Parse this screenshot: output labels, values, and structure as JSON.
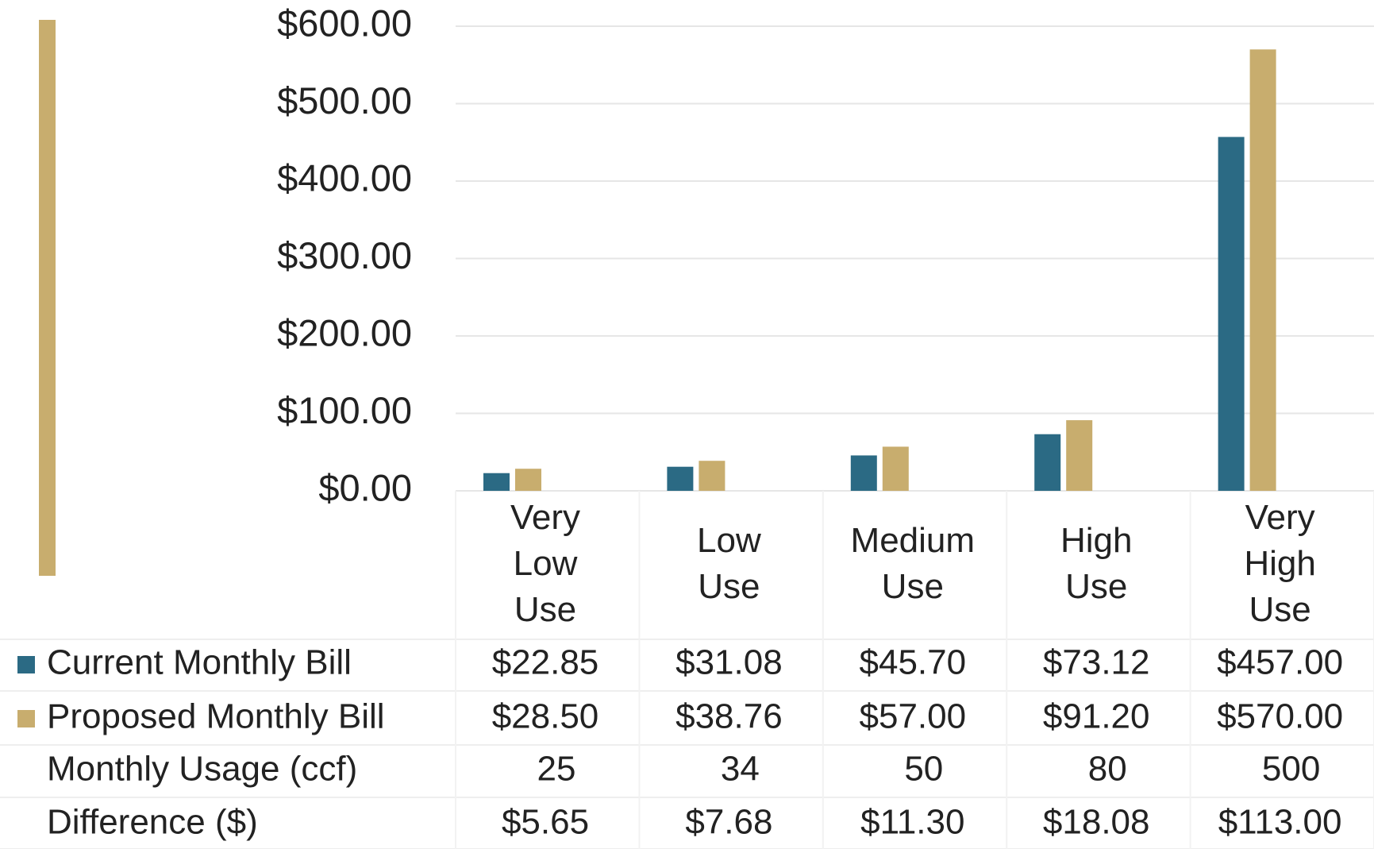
{
  "chart_data": {
    "type": "bar",
    "categories": [
      "Very Low Use",
      "Low Use",
      "Medium Use",
      "High Use",
      "Very High Use"
    ],
    "series": [
      {
        "name": "Current Monthly Bill",
        "color": "#2b6a84",
        "values": [
          22.85,
          31.08,
          45.7,
          73.12,
          457.0
        ],
        "value_labels": [
          "$22.85",
          "$31.08",
          "$45.70",
          "$73.12",
          "$457.00"
        ]
      },
      {
        "name": "Proposed Monthly Bill",
        "color": "#c8ad6e",
        "values": [
          28.5,
          38.76,
          57.0,
          91.2,
          570.0
        ],
        "value_labels": [
          "$28.50",
          "$38.76",
          "$57.00",
          "$91.20",
          "$570.00"
        ]
      }
    ],
    "table_rows": [
      {
        "name": "Monthly Usage (ccf)",
        "values": [
          25,
          34,
          50,
          80,
          500
        ]
      },
      {
        "name": "Difference ($)",
        "values": [
          5.65,
          7.68,
          11.3,
          18.08,
          113.0
        ],
        "value_labels": [
          "$5.65",
          "$7.68",
          "$11.30",
          "$18.08",
          "$113.00"
        ]
      }
    ],
    "ylim": [
      0,
      600
    ],
    "yticks": [
      {
        "value": 0,
        "label": "$0.00"
      },
      {
        "value": 100,
        "label": "$100.00"
      },
      {
        "value": 200,
        "label": "$200.00"
      },
      {
        "value": 300,
        "label": "$300.00"
      },
      {
        "value": 400,
        "label": "$400.00"
      },
      {
        "value": 500,
        "label": "$500.00"
      },
      {
        "value": 600,
        "label": "$600.00"
      }
    ],
    "grid": true
  }
}
